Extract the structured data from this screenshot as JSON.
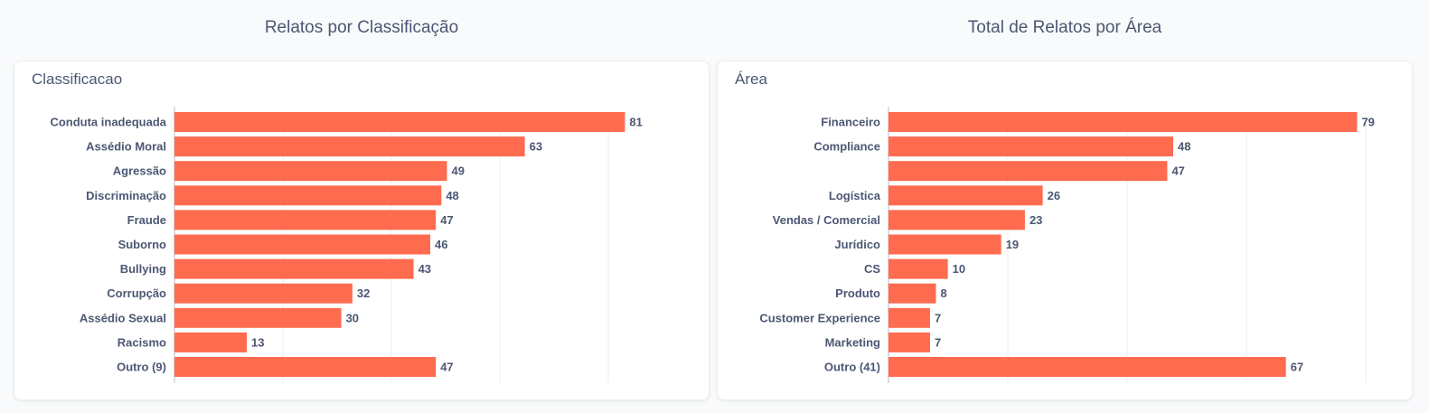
{
  "accent_color": "#ff6b4f",
  "panels": [
    {
      "section_title": "Relatos por Classificação",
      "card_title": "Classificacao",
      "chart_data": {
        "type": "bar",
        "orientation": "horizontal",
        "title": "Relatos por Classificação",
        "ylabel": "Classificacao",
        "categories": [
          "Conduta inadequada",
          "Assédio Moral",
          "Agressão",
          "Discriminação",
          "Fraude",
          "Suborno",
          "Bullying",
          "Corrupção",
          "Assédio Sexual",
          "Racismo",
          "Outro (9)"
        ],
        "values": [
          81,
          63,
          49,
          48,
          47,
          46,
          43,
          32,
          30,
          13,
          47
        ],
        "xlim": [
          0,
          85
        ],
        "grid": true,
        "color": "#ff6b4f"
      }
    },
    {
      "section_title": "Total de Relatos por Área",
      "card_title": "Área",
      "chart_data": {
        "type": "bar",
        "orientation": "horizontal",
        "title": "Total de Relatos por Área",
        "ylabel": "Área",
        "categories": [
          "Financeiro",
          "Compliance",
          "",
          "Logística",
          "Vendas / Comercial",
          "Jurídico",
          "CS",
          "Produto",
          "Customer Experience",
          "Marketing",
          "Outro (41)"
        ],
        "values": [
          79,
          48,
          47,
          26,
          23,
          19,
          10,
          8,
          7,
          7,
          67
        ],
        "xlim": [
          0,
          80
        ],
        "grid": true,
        "color": "#ff6b4f"
      }
    }
  ]
}
